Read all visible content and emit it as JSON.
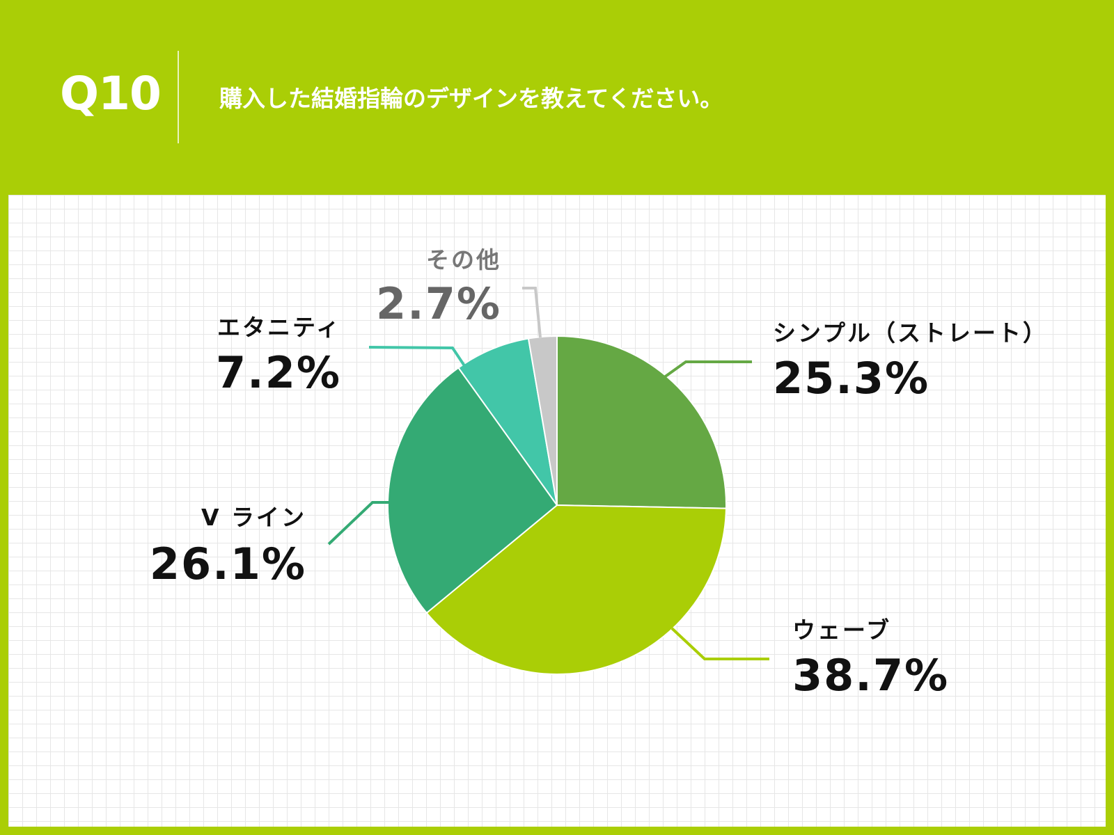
{
  "header": {
    "number": "Q10",
    "question": "購入した結婚指輪のデザインを教えてください。"
  },
  "colors": {
    "background": "#aace06",
    "simple": "#65a844",
    "wave": "#aace06",
    "vline": "#34aa74",
    "eternity": "#42c6a8",
    "other": "#c8c8c8"
  },
  "chart_data": {
    "type": "pie",
    "start_angle_deg": 0,
    "direction": "clockwise",
    "slices": [
      {
        "label": "シンプル（ストレート）",
        "value": 25.3,
        "value_label": "25.3%",
        "color": "#65a844"
      },
      {
        "label": "ウェーブ",
        "value": 38.7,
        "value_label": "38.7%",
        "color": "#aace06"
      },
      {
        "label": "V ライン",
        "value": 26.1,
        "value_label": "26.1%",
        "color": "#34aa74"
      },
      {
        "label": "エタニティ",
        "value": 7.2,
        "value_label": "7.2%",
        "color": "#42c6a8"
      },
      {
        "label": "その他",
        "value": 2.7,
        "value_label": "2.7%",
        "color": "#c8c8c8"
      }
    ]
  }
}
